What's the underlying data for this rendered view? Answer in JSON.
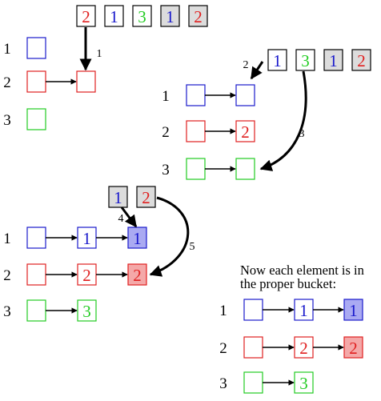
{
  "colors": {
    "blue": "#1a1acc",
    "red": "#e02020",
    "green": "#22cc22",
    "black": "#000000",
    "gray_fill": "#dcdcdc",
    "blue_fill": "#aaaaf2",
    "red_fill": "#f4a8a8"
  },
  "stages": [
    {
      "input": [
        {
          "value": "2",
          "color": "red",
          "fill": "none",
          "emphasis": true
        },
        {
          "value": "1",
          "color": "blue",
          "fill": "none"
        },
        {
          "value": "3",
          "color": "green",
          "fill": "none"
        },
        {
          "value": "1",
          "color": "blue",
          "fill": "gray"
        },
        {
          "value": "2",
          "color": "red",
          "fill": "gray"
        }
      ],
      "step_label": "1",
      "buckets": [
        {
          "label": "1",
          "color": "blue",
          "items": []
        },
        {
          "label": "2",
          "color": "red",
          "items": [
            {
              "value": ""
            }
          ]
        },
        {
          "label": "3",
          "color": "green",
          "items": []
        }
      ]
    },
    {
      "input": [
        {
          "value": "1",
          "color": "blue",
          "fill": "none",
          "emphasis": true
        },
        {
          "value": "3",
          "color": "green",
          "fill": "none",
          "emphasis": true
        },
        {
          "value": "1",
          "color": "blue",
          "fill": "gray"
        },
        {
          "value": "2",
          "color": "red",
          "fill": "gray"
        }
      ],
      "step_labels": [
        "2",
        "3"
      ],
      "buckets": [
        {
          "label": "1",
          "color": "blue",
          "items": [
            {
              "value": ""
            }
          ]
        },
        {
          "label": "2",
          "color": "red",
          "items": [
            {
              "value": "2"
            }
          ]
        },
        {
          "label": "3",
          "color": "green",
          "items": [
            {
              "value": ""
            }
          ]
        }
      ]
    },
    {
      "input": [
        {
          "value": "1",
          "color": "blue",
          "fill": "gray"
        },
        {
          "value": "2",
          "color": "red",
          "fill": "gray"
        }
      ],
      "step_labels": [
        "4",
        "5"
      ],
      "buckets": [
        {
          "label": "1",
          "color": "blue",
          "items": [
            {
              "value": "1"
            },
            {
              "value": "1",
              "fill": "blue"
            }
          ]
        },
        {
          "label": "2",
          "color": "red",
          "items": [
            {
              "value": "2"
            },
            {
              "value": "2",
              "fill": "red"
            }
          ]
        },
        {
          "label": "3",
          "color": "green",
          "items": [
            {
              "value": "3"
            }
          ]
        }
      ]
    },
    {
      "caption": "Now each element is in the proper bucket:",
      "buckets": [
        {
          "label": "1",
          "color": "blue",
          "items": [
            {
              "value": "1"
            },
            {
              "value": "1",
              "fill": "blue"
            }
          ]
        },
        {
          "label": "2",
          "color": "red",
          "items": [
            {
              "value": "2"
            },
            {
              "value": "2",
              "fill": "red"
            }
          ]
        },
        {
          "label": "3",
          "color": "green",
          "items": [
            {
              "value": "3"
            }
          ]
        }
      ]
    }
  ]
}
